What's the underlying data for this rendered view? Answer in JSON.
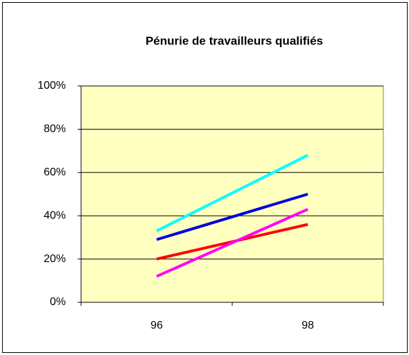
{
  "chart_data": {
    "type": "line",
    "title": "Pénurie de travailleurs qualifiés",
    "categories": [
      "96",
      "98"
    ],
    "series": [
      {
        "color": "#00ffff",
        "values": [
          33,
          68
        ]
      },
      {
        "color": "#0000dd",
        "values": [
          29,
          50
        ]
      },
      {
        "color": "#ff0000",
        "values": [
          20,
          36
        ]
      },
      {
        "color": "#ff00ff",
        "values": [
          12,
          43
        ]
      }
    ],
    "ylim": [
      0,
      100
    ],
    "yticks": [
      {
        "value": 0,
        "label": "0%"
      },
      {
        "value": 20,
        "label": "20%"
      },
      {
        "value": 40,
        "label": "40%"
      },
      {
        "value": 60,
        "label": "60%"
      },
      {
        "value": 80,
        "label": "80%"
      },
      {
        "value": 100,
        "label": "100%"
      }
    ],
    "grid": true,
    "plot_background": "#ffffc0"
  }
}
